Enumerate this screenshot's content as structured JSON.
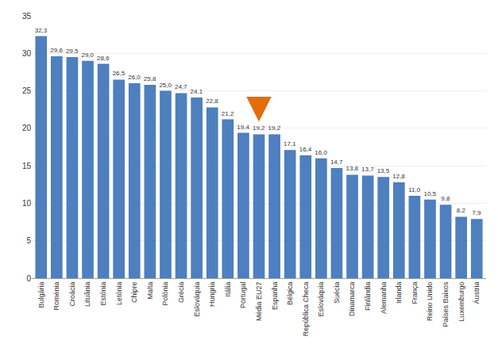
{
  "chart_data": {
    "type": "bar",
    "categories": [
      "Bulgária",
      "Roménia",
      "Croácia",
      "Lituânia",
      "Estónia",
      "Letónia",
      "Chipre",
      "Malta",
      "Polónia",
      "Grécia",
      "Eslováquia",
      "Hungria",
      "Itália",
      "Portugal",
      "Média EU27",
      "Espanha",
      "Bélgica",
      "República Checa",
      "Eslováquia",
      "Suécia",
      "Dinamarca",
      "Finlândia",
      "Alemanha",
      "Irlanda",
      "França",
      "Reino Unido",
      "Países Baixos",
      "Luxemburgo",
      "Áustria"
    ],
    "values": [
      32.3,
      29.6,
      29.5,
      29.0,
      28.6,
      26.5,
      26.0,
      25.8,
      25.0,
      24.7,
      24.1,
      22.8,
      21.2,
      19.4,
      19.2,
      19.2,
      17.1,
      16.4,
      16.0,
      14.7,
      13.8,
      13.7,
      13.5,
      12.8,
      11.0,
      10.5,
      9.8,
      8.2,
      7.9
    ],
    "value_labels": [
      "32,3",
      "29,6",
      "29,5",
      "29,0",
      "28,6",
      "26,5",
      "26,0",
      "25,8",
      "25,0",
      "24,7",
      "24,1",
      "22,8",
      "21,2",
      "19,4",
      "19,2",
      "19,2",
      "17,1",
      "16,4",
      "16,0",
      "14,7",
      "13,8",
      "13,7",
      "13,5",
      "12,8",
      "11,0",
      "10,5",
      "9,8",
      "8,2",
      "7,9"
    ],
    "color": "#4E7FBF",
    "ylim": [
      0,
      35
    ],
    "yticks": [
      0,
      5,
      10,
      15,
      20,
      25,
      30,
      35
    ],
    "grid": true,
    "data_labels": true,
    "annotations": [
      {
        "type": "arrow",
        "x": "Média EU27",
        "color": "#E36C09"
      }
    ]
  }
}
